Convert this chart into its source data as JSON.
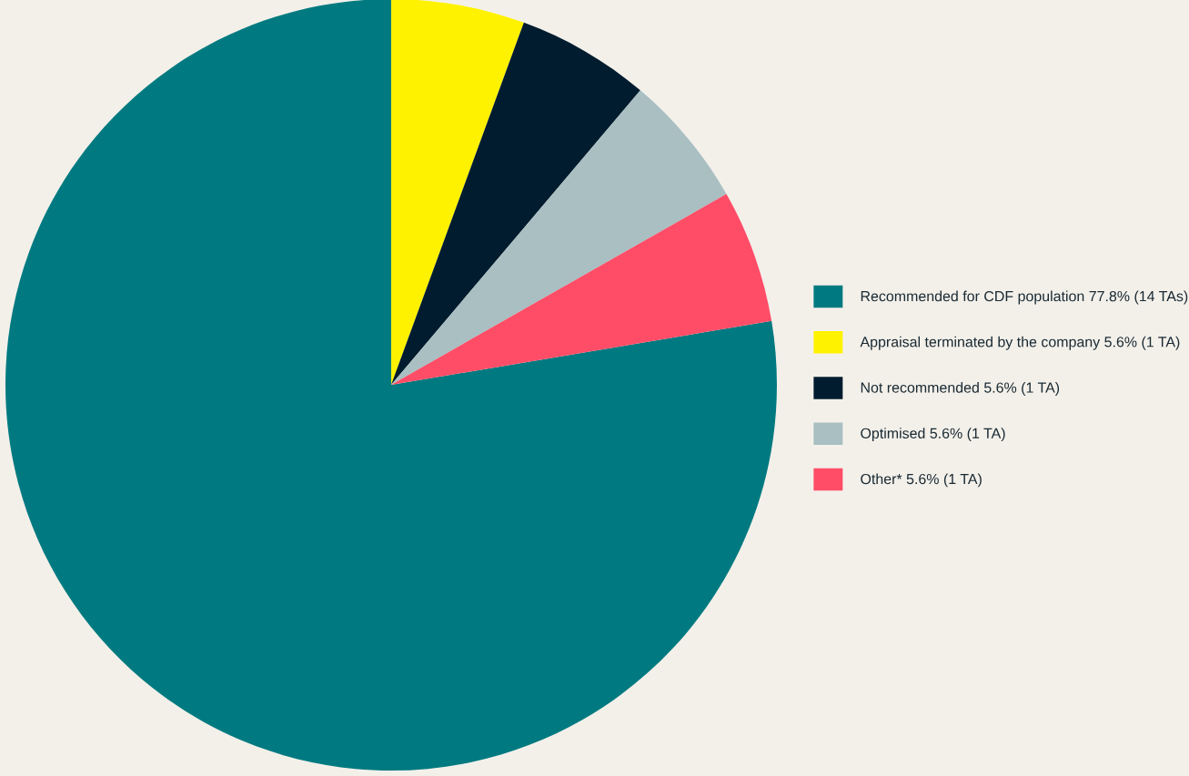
{
  "chart_data": {
    "type": "pie",
    "categories": [
      "Recommended for CDF population",
      "Appraisal terminated by the company",
      "Not recommended",
      "Optimised",
      "Other*"
    ],
    "values": [
      77.8,
      5.6,
      5.6,
      5.6,
      5.6
    ],
    "value_labels": [
      "77.8% (14 TAs)",
      "5.6% (1 TA)",
      "5.6% (1 TA)",
      "5.6% (1 TA)",
      "5.6% (1 TA)"
    ],
    "colors": [
      "#007a80",
      "#fff200",
      "#001c2e",
      "#a9bfc2",
      "#ff4d67"
    ],
    "legend": "right"
  }
}
